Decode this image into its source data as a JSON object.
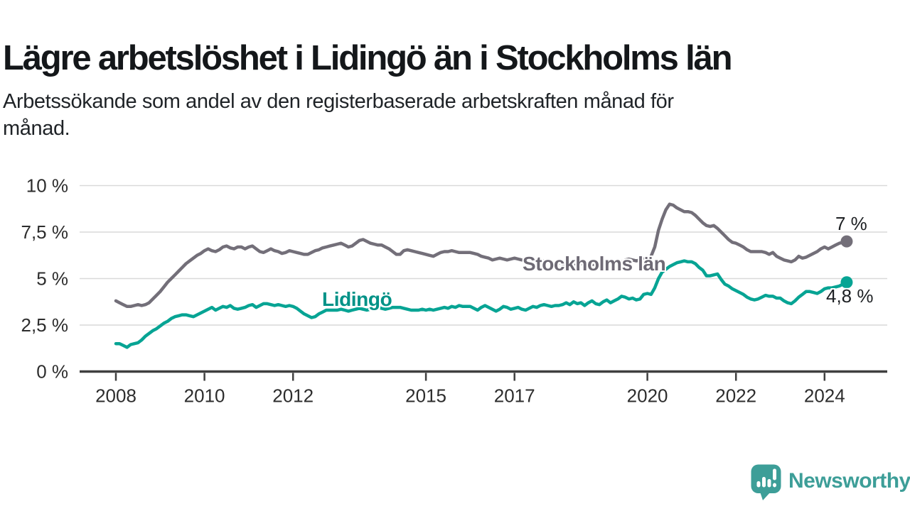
{
  "header": {
    "title": "Lägre arbetslöshet i Lidingö än i Stockholms län",
    "subtitle_lines": [
      "Arbetssökande som andel av den registerbaserade arbetskraften månad för",
      "månad."
    ]
  },
  "chart_data": {
    "type": "line",
    "unit": "%",
    "grid": "horizontal",
    "ylim": [
      0,
      10
    ],
    "x_start_year": 2008,
    "x_step_months": 1,
    "x_end_year_approx": 2024.5,
    "x_ticks": {
      "years": [
        2008,
        2010,
        2012,
        2015,
        2017,
        2020,
        2022,
        2024
      ],
      "labels": [
        "2008",
        "2010",
        "2012",
        "2015",
        "2017",
        "2020",
        "2022",
        "2024"
      ]
    },
    "y_ticks": {
      "values": [
        0,
        2.5,
        5,
        7.5,
        10
      ],
      "labels": [
        "0 %",
        "2,5 %",
        "5 %",
        "7,5 %",
        "10 %"
      ]
    },
    "series": [
      {
        "name": "Stockholms län",
        "color": "#736f79",
        "end_label": "7 %",
        "end_value": 7.0,
        "values": [
          3.8,
          3.7,
          3.6,
          3.5,
          3.5,
          3.55,
          3.6,
          3.55,
          3.6,
          3.7,
          3.9,
          4.1,
          4.3,
          4.55,
          4.8,
          5.0,
          5.2,
          5.4,
          5.6,
          5.8,
          5.95,
          6.1,
          6.25,
          6.35,
          6.5,
          6.6,
          6.5,
          6.45,
          6.55,
          6.7,
          6.75,
          6.65,
          6.6,
          6.7,
          6.7,
          6.6,
          6.7,
          6.75,
          6.6,
          6.45,
          6.4,
          6.5,
          6.6,
          6.5,
          6.45,
          6.35,
          6.4,
          6.5,
          6.45,
          6.4,
          6.35,
          6.3,
          6.3,
          6.4,
          6.5,
          6.55,
          6.65,
          6.7,
          6.75,
          6.8,
          6.85,
          6.9,
          6.8,
          6.7,
          6.75,
          6.9,
          7.05,
          7.1,
          7.0,
          6.9,
          6.85,
          6.8,
          6.8,
          6.7,
          6.6,
          6.45,
          6.3,
          6.3,
          6.5,
          6.55,
          6.5,
          6.45,
          6.4,
          6.35,
          6.3,
          6.25,
          6.2,
          6.3,
          6.4,
          6.45,
          6.45,
          6.5,
          6.45,
          6.4,
          6.4,
          6.4,
          6.4,
          6.35,
          6.3,
          6.2,
          6.15,
          6.1,
          6.0,
          6.05,
          6.1,
          6.05,
          6.0,
          6.05,
          6.1,
          6.05,
          6.0,
          6.0,
          5.95,
          5.9,
          5.95,
          6.0,
          5.95,
          5.9,
          5.9,
          5.85,
          5.85,
          5.8,
          5.8,
          5.75,
          5.7,
          5.75,
          5.8,
          5.85,
          5.8,
          5.75,
          5.8,
          5.85,
          5.9,
          5.9,
          5.85,
          5.8,
          5.85,
          5.9,
          6.0,
          6.05,
          6.0,
          5.95,
          6.0,
          6.05,
          6.1,
          6.2,
          6.7,
          7.6,
          8.2,
          8.7,
          9.0,
          8.95,
          8.8,
          8.7,
          8.6,
          8.6,
          8.55,
          8.4,
          8.2,
          8.0,
          7.85,
          7.8,
          7.85,
          7.7,
          7.5,
          7.3,
          7.1,
          6.95,
          6.9,
          6.8,
          6.7,
          6.55,
          6.45,
          6.45,
          6.45,
          6.45,
          6.4,
          6.3,
          6.4,
          6.2,
          6.1,
          6.0,
          5.95,
          5.9,
          6.0,
          6.2,
          6.1,
          6.15,
          6.25,
          6.35,
          6.45,
          6.6,
          6.7,
          6.6,
          6.7,
          6.8,
          6.9,
          6.95,
          7.0
        ]
      },
      {
        "name": "Lidingö",
        "color": "#07a494",
        "end_label": "4,8 %",
        "end_value": 4.8,
        "values": [
          1.5,
          1.5,
          1.4,
          1.3,
          1.45,
          1.5,
          1.55,
          1.7,
          1.9,
          2.05,
          2.2,
          2.3,
          2.45,
          2.6,
          2.7,
          2.85,
          2.95,
          3.0,
          3.05,
          3.05,
          3.0,
          2.95,
          3.05,
          3.15,
          3.25,
          3.35,
          3.45,
          3.3,
          3.4,
          3.5,
          3.45,
          3.55,
          3.4,
          3.35,
          3.4,
          3.45,
          3.55,
          3.6,
          3.45,
          3.55,
          3.65,
          3.65,
          3.6,
          3.55,
          3.6,
          3.55,
          3.5,
          3.55,
          3.5,
          3.4,
          3.25,
          3.1,
          3.0,
          2.9,
          2.95,
          3.1,
          3.2,
          3.3,
          3.3,
          3.3,
          3.3,
          3.35,
          3.3,
          3.25,
          3.3,
          3.35,
          3.4,
          3.35,
          3.3,
          3.35,
          3.4,
          3.45,
          3.4,
          3.35,
          3.4,
          3.45,
          3.45,
          3.45,
          3.4,
          3.35,
          3.3,
          3.3,
          3.3,
          3.35,
          3.3,
          3.35,
          3.3,
          3.35,
          3.4,
          3.45,
          3.4,
          3.5,
          3.45,
          3.55,
          3.5,
          3.5,
          3.5,
          3.4,
          3.3,
          3.45,
          3.55,
          3.45,
          3.35,
          3.25,
          3.35,
          3.5,
          3.45,
          3.35,
          3.4,
          3.45,
          3.35,
          3.3,
          3.4,
          3.5,
          3.45,
          3.55,
          3.6,
          3.55,
          3.5,
          3.55,
          3.55,
          3.6,
          3.7,
          3.6,
          3.75,
          3.65,
          3.7,
          3.55,
          3.7,
          3.8,
          3.65,
          3.6,
          3.75,
          3.85,
          3.7,
          3.8,
          3.9,
          4.05,
          4.0,
          3.9,
          3.95,
          3.85,
          3.9,
          4.15,
          4.2,
          4.15,
          4.5,
          5.0,
          5.35,
          5.5,
          5.65,
          5.75,
          5.85,
          5.9,
          5.95,
          5.9,
          5.9,
          5.8,
          5.6,
          5.45,
          5.15,
          5.15,
          5.2,
          5.25,
          4.95,
          4.7,
          4.6,
          4.45,
          4.35,
          4.25,
          4.15,
          4.0,
          3.9,
          3.85,
          3.9,
          4.0,
          4.1,
          4.05,
          4.05,
          3.95,
          3.95,
          3.8,
          3.7,
          3.65,
          3.8,
          4.0,
          4.15,
          4.3,
          4.3,
          4.25,
          4.2,
          4.3,
          4.45,
          4.5,
          4.5,
          4.55,
          4.6,
          4.7,
          4.8
        ]
      }
    ]
  },
  "style_colors": {
    "axis": "#3f3f3f",
    "gridline": "#d9d9d9",
    "tick_text": "#2d2d2d"
  },
  "branding": {
    "logo_text": "Newsworthy",
    "logo_color": "#3d9e98"
  }
}
